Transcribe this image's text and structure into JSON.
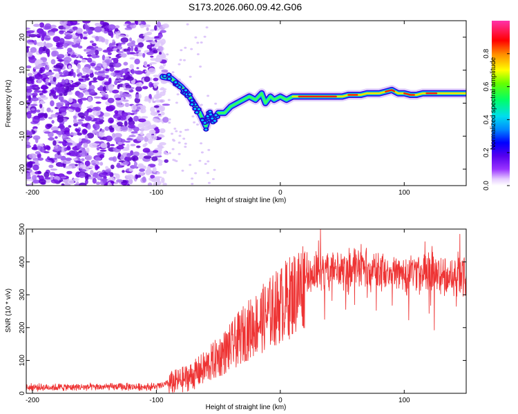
{
  "title": "S173.2026.060.09.42.G06",
  "chart_data": [
    {
      "type": "heatmap",
      "name": "spectrogram",
      "xlabel": "Height of straight line (km)",
      "ylabel": "Frequency (Hz)",
      "xlim": [
        -205,
        150
      ],
      "ylim": [
        -25,
        25
      ],
      "xticks": [
        -200,
        -100,
        0,
        100
      ],
      "yticks": [
        -20,
        -10,
        0,
        10,
        20
      ],
      "colorbar": {
        "label": "Normalized spectral amplitude",
        "range": [
          0,
          1
        ],
        "ticks": [
          0.0,
          0.2,
          0.4,
          0.6,
          0.8
        ]
      },
      "ridge": {
        "x": [
          -95,
          -88,
          -80,
          -75,
          -70,
          -65,
          -60,
          -57,
          -54,
          -50,
          -45,
          -40,
          -35,
          -30,
          -25,
          -20,
          -15,
          -12,
          -8,
          -5,
          0,
          5,
          10,
          15,
          20,
          30,
          40,
          50,
          55,
          60,
          65,
          70,
          75,
          80,
          85,
          90,
          95,
          100,
          105,
          110,
          115,
          120,
          130,
          140,
          150
        ],
        "y": [
          8,
          7.5,
          5,
          3,
          0,
          -3,
          -7,
          -3,
          -5,
          -3,
          -3,
          -1,
          0,
          1,
          2,
          1,
          3,
          0,
          2,
          1,
          2,
          1,
          2,
          2,
          2,
          2,
          2,
          2,
          2.5,
          2.5,
          2.5,
          3,
          3,
          3,
          3.5,
          4,
          3,
          3,
          2.5,
          2.5,
          3,
          3,
          3,
          3,
          3
        ]
      }
    },
    {
      "type": "line",
      "name": "snr",
      "xlabel": "Height of straight line (km)",
      "ylabel": "SNR (10 * v/v)",
      "xlim": [
        -205,
        150
      ],
      "ylim": [
        0,
        500
      ],
      "xticks": [
        -200,
        -100,
        0,
        100
      ],
      "yticks": [
        0,
        100,
        200,
        300,
        400,
        500
      ],
      "color": "#ee3333",
      "trend": {
        "x": [
          -205,
          -100,
          -90,
          -80,
          -70,
          -60,
          -50,
          -40,
          -30,
          -20,
          -10,
          0,
          10,
          20,
          25,
          30,
          40,
          60,
          80,
          100,
          110,
          120,
          130,
          140,
          150
        ],
        "y": [
          18,
          20,
          30,
          40,
          55,
          80,
          110,
          140,
          180,
          210,
          240,
          270,
          300,
          340,
          360,
          375,
          370,
          380,
          375,
          365,
          360,
          370,
          355,
          360,
          360
        ]
      }
    }
  ]
}
